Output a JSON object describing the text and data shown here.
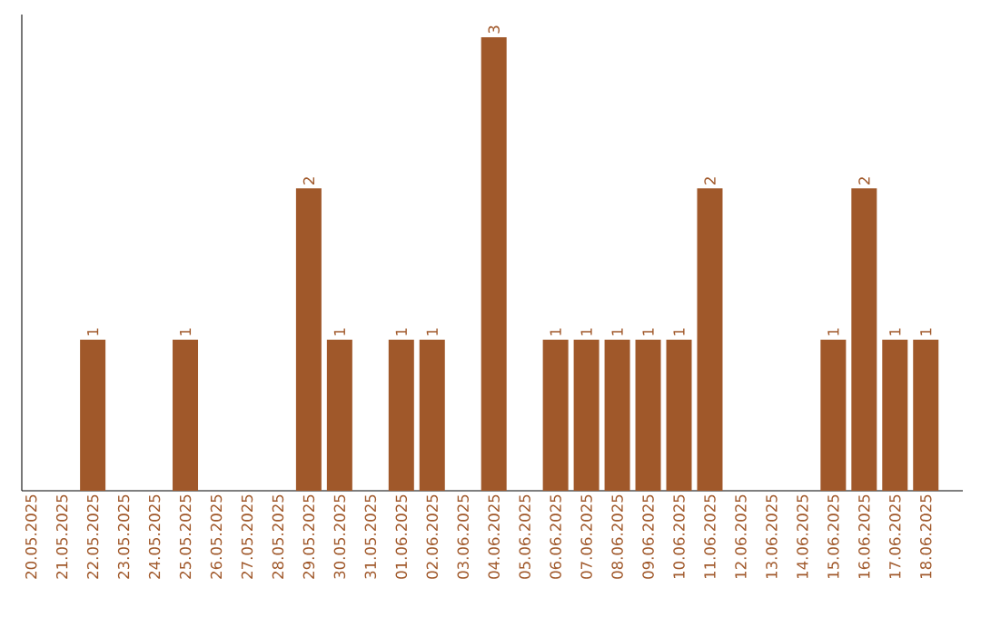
{
  "chart_data": {
    "type": "bar",
    "categories": [
      "20.05.2025",
      "21.05.2025",
      "22.05.2025",
      "23.05.2025",
      "24.05.2025",
      "25.05.2025",
      "26.05.2025",
      "27.05.2025",
      "28.05.2025",
      "29.05.2025",
      "30.05.2025",
      "31.05.2025",
      "01.06.2025",
      "02.06.2025",
      "03.06.2025",
      "04.06.2025",
      "05.06.2025",
      "06.06.2025",
      "07.06.2025",
      "08.06.2025",
      "09.06.2025",
      "10.06.2025",
      "11.06.2025",
      "12.06.2025",
      "13.06.2025",
      "14.06.2025",
      "15.06.2025",
      "16.06.2025",
      "17.06.2025",
      "18.06.2025"
    ],
    "values": [
      0,
      0,
      1,
      0,
      0,
      1,
      0,
      0,
      0,
      2,
      1,
      0,
      1,
      1,
      0,
      3,
      0,
      1,
      1,
      1,
      1,
      1,
      2,
      0,
      0,
      0,
      1,
      2,
      1,
      1
    ],
    "value_labels": [
      null,
      null,
      "1",
      null,
      null,
      "1",
      null,
      null,
      null,
      "2",
      "1",
      null,
      "1",
      "1",
      null,
      "3",
      null,
      "1",
      "1",
      "1",
      "1",
      "1",
      "2",
      null,
      null,
      null,
      "1",
      "2",
      "1",
      "1"
    ],
    "color": "#a0582a"
  }
}
